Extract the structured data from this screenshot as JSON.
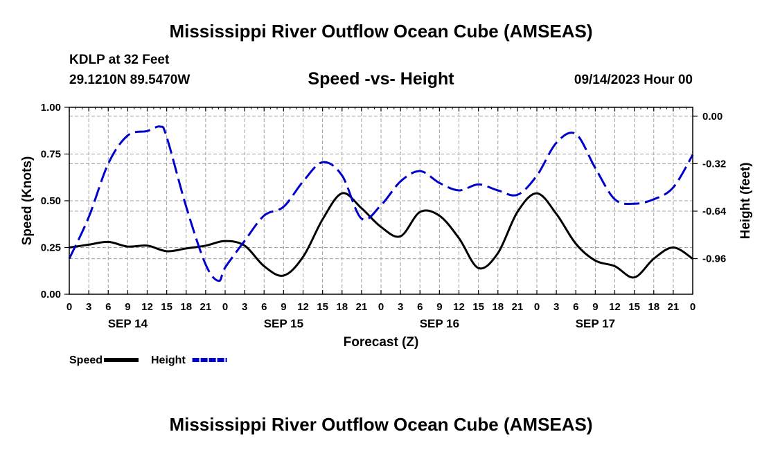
{
  "header": {
    "main_title": "Mississippi River Outflow Ocean Cube (AMSEAS)",
    "station": "KDLP at 32 Feet",
    "coordinates": "29.1210N  89.5470W",
    "chart_title": "Speed -vs- Height",
    "datetime": "09/14/2023 Hour 00"
  },
  "footer": {
    "repeat_title": "Mississippi River Outflow Ocean Cube (AMSEAS)"
  },
  "chart_data": {
    "type": "line",
    "xlabel": "Forecast (Z)",
    "ylabel_left": "Speed (Knots)",
    "ylabel_right": "Height (feet)",
    "x_range_hours": [
      0,
      96
    ],
    "x_tick_step_hours": 3,
    "x_tick_labels": [
      "0",
      "3",
      "6",
      "9",
      "12",
      "15",
      "18",
      "21",
      "0",
      "3",
      "6",
      "9",
      "12",
      "15",
      "18",
      "21",
      "0",
      "3",
      "6",
      "9",
      "12",
      "15",
      "18",
      "21",
      "0",
      "3",
      "6",
      "9",
      "12",
      "15",
      "18",
      "21",
      "0"
    ],
    "day_labels": [
      {
        "label": "SEP 14",
        "hour": 9
      },
      {
        "label": "SEP 15",
        "hour": 33
      },
      {
        "label": "SEP 16",
        "hour": 57
      },
      {
        "label": "SEP 17",
        "hour": 81
      }
    ],
    "left_axis": {
      "ylim": [
        0,
        1
      ],
      "ticks": [
        "0.00",
        "0.25",
        "0.50",
        "0.75",
        "1.00"
      ],
      "tick_values": [
        0,
        0.25,
        0.5,
        0.75,
        1.0
      ]
    },
    "right_axis": {
      "ylim": [
        -1.2,
        0.06
      ],
      "ticks": [
        "0.00",
        "-0.32",
        "-0.64",
        "-0.96"
      ],
      "tick_values": [
        0.0,
        -0.32,
        -0.64,
        -0.96
      ]
    },
    "grid": true,
    "series": [
      {
        "name": "Speed",
        "axis": "left",
        "color": "#000000",
        "style": "solid",
        "hours": [
          0,
          3,
          6,
          9,
          12,
          15,
          18,
          21,
          24,
          27,
          30,
          33,
          36,
          39,
          42,
          45,
          48,
          51,
          54,
          57,
          60,
          63,
          66,
          69,
          72,
          75,
          78,
          81,
          84,
          87,
          90,
          93,
          96
        ],
        "values": [
          0.25,
          0.265,
          0.28,
          0.255,
          0.26,
          0.23,
          0.245,
          0.26,
          0.285,
          0.26,
          0.15,
          0.1,
          0.2,
          0.4,
          0.54,
          0.46,
          0.36,
          0.31,
          0.44,
          0.42,
          0.3,
          0.14,
          0.22,
          0.44,
          0.54,
          0.43,
          0.27,
          0.18,
          0.15,
          0.09,
          0.19,
          0.25,
          0.19
        ]
      },
      {
        "name": "Height",
        "axis": "right",
        "color": "#0000cc",
        "style": "dashed",
        "hours": [
          0,
          3,
          6,
          9,
          12,
          14,
          15,
          18,
          21,
          23,
          24,
          27,
          30,
          33,
          36,
          39,
          42,
          45,
          48,
          51,
          54,
          57,
          60,
          63,
          66,
          69,
          72,
          75,
          78,
          81,
          84,
          87,
          90,
          93,
          96
        ],
        "values": [
          -0.96,
          -0.68,
          -0.32,
          -0.13,
          -0.1,
          -0.07,
          -0.14,
          -0.61,
          -1.0,
          -1.11,
          -1.02,
          -0.84,
          -0.67,
          -0.61,
          -0.44,
          -0.31,
          -0.4,
          -0.69,
          -0.6,
          -0.44,
          -0.37,
          -0.45,
          -0.5,
          -0.46,
          -0.5,
          -0.53,
          -0.4,
          -0.18,
          -0.12,
          -0.35,
          -0.56,
          -0.59,
          -0.56,
          -0.48,
          -0.26
        ]
      }
    ],
    "legend": [
      {
        "name": "Speed",
        "color": "#000000",
        "style": "solid"
      },
      {
        "name": "Height",
        "color": "#0000cc",
        "style": "dashed"
      }
    ]
  }
}
